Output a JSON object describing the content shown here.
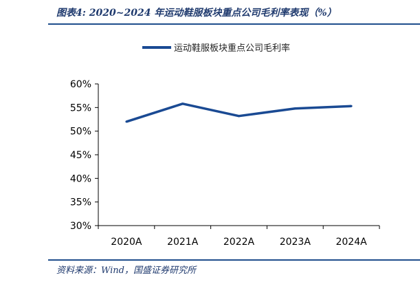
{
  "figure": {
    "title": "图表4:  2020~2024 年运动鞋服板块重点公司毛利率表现（%）",
    "source": "资料来源：Wind，国盛证券研究所"
  },
  "chart_data": {
    "type": "line",
    "categories": [
      "2020A",
      "2021A",
      "2022A",
      "2023A",
      "2024A"
    ],
    "series": [
      {
        "name": "运动鞋服板块重点公司毛利率",
        "values": [
          52.0,
          55.8,
          53.2,
          54.8,
          55.3
        ]
      }
    ],
    "ylim": [
      30,
      60
    ],
    "yticks": [
      "30%",
      "35%",
      "40%",
      "45%",
      "50%",
      "55%",
      "60%"
    ],
    "ytick_values": [
      30,
      35,
      40,
      45,
      50,
      55,
      60
    ],
    "xlabel": "",
    "ylabel": "",
    "grid": false,
    "legend_position": "top",
    "color": "#1a4a93"
  }
}
